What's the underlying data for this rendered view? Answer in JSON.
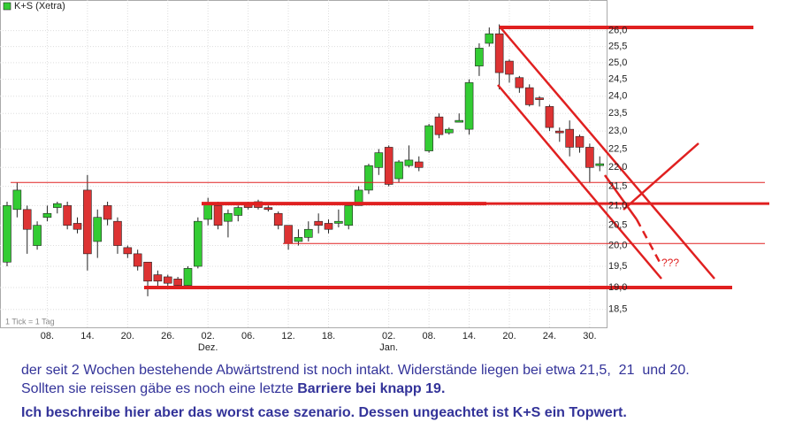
{
  "chart_data": {
    "type": "candlestick",
    "legend": "K+S (Xetra)",
    "note": "1 Tick = 1 Tag",
    "log_scale": true,
    "grid": true,
    "up_color": "#33cc33",
    "down_color": "#dd3333",
    "level_color": "#e02020",
    "categories": [
      null,
      null,
      null,
      null,
      "08.",
      null,
      null,
      null,
      "14.",
      null,
      null,
      null,
      "20.",
      null,
      null,
      null,
      "26.",
      null,
      null,
      null,
      "02.",
      null,
      null,
      null,
      "06.",
      null,
      null,
      null,
      "12.",
      null,
      null,
      null,
      "18.",
      null,
      null,
      null,
      null,
      null,
      "02.",
      null,
      null,
      null,
      "08.",
      null,
      null,
      null,
      "14.",
      null,
      null,
      null,
      "20.",
      null,
      null,
      null,
      "24.",
      null,
      null,
      null,
      "30.",
      null
    ],
    "months": [
      null,
      null,
      null,
      null,
      null,
      null,
      null,
      null,
      null,
      null,
      null,
      null,
      null,
      null,
      null,
      null,
      null,
      null,
      null,
      null,
      "Dez.",
      null,
      null,
      null,
      null,
      null,
      null,
      null,
      null,
      null,
      null,
      null,
      null,
      null,
      null,
      null,
      null,
      null,
      "Jan.",
      null,
      null,
      null,
      null,
      null,
      null,
      null,
      null,
      null,
      null,
      null,
      null,
      null,
      null,
      null,
      null,
      null,
      null,
      null,
      null,
      null
    ],
    "open": [
      19.6,
      20.9,
      20.9,
      20.0,
      20.7,
      20.95,
      21.0,
      20.55,
      21.4,
      20.1,
      21.0,
      20.6,
      19.95,
      19.8,
      19.6,
      19.3,
      19.25,
      19.2,
      19.05,
      19.5,
      20.65,
      21.0,
      20.6,
      20.75,
      21.05,
      21.1,
      20.95,
      20.8,
      20.5,
      20.1,
      20.2,
      20.6,
      20.55,
      20.55,
      20.5,
      21.0,
      21.4,
      22.0,
      22.55,
      21.7,
      22.05,
      22.15,
      22.45,
      23.4,
      22.95,
      23.25,
      23.05,
      24.9,
      25.6,
      25.9,
      25.05,
      24.55,
      24.25,
      23.95,
      23.7,
      23.0,
      23.05,
      22.85,
      22.55,
      22.05
    ],
    "high": [
      21.1,
      21.6,
      21.0,
      20.6,
      21.0,
      21.1,
      21.1,
      20.7,
      21.8,
      20.9,
      21.1,
      20.7,
      20.0,
      19.9,
      19.6,
      19.4,
      19.3,
      19.25,
      19.5,
      20.7,
      21.2,
      21.1,
      20.9,
      21.0,
      21.1,
      21.15,
      21.0,
      20.85,
      20.5,
      20.4,
      20.6,
      20.8,
      20.65,
      20.9,
      21.05,
      21.5,
      22.1,
      22.5,
      22.6,
      22.2,
      22.6,
      22.3,
      23.2,
      23.5,
      23.1,
      23.5,
      24.5,
      25.6,
      26.1,
      26.2,
      25.1,
      24.6,
      24.35,
      24.0,
      23.75,
      23.1,
      23.3,
      22.9,
      22.65,
      22.3
    ],
    "low": [
      19.5,
      20.7,
      19.8,
      19.9,
      20.6,
      20.8,
      20.4,
      20.3,
      19.4,
      19.7,
      20.5,
      19.8,
      19.7,
      19.4,
      18.8,
      19.0,
      19.0,
      19.0,
      19.0,
      19.45,
      20.5,
      20.4,
      20.2,
      20.6,
      20.9,
      20.9,
      20.85,
      20.4,
      19.9,
      20.0,
      20.1,
      20.3,
      20.3,
      20.45,
      20.4,
      21.0,
      21.3,
      21.8,
      21.5,
      21.6,
      22.0,
      21.9,
      22.4,
      22.8,
      22.9,
      23.25,
      22.9,
      24.6,
      25.5,
      24.2,
      24.4,
      24.1,
      23.7,
      23.7,
      23.0,
      22.7,
      22.3,
      22.4,
      21.6,
      21.9
    ],
    "close": [
      21.0,
      21.4,
      20.4,
      20.5,
      20.8,
      21.05,
      20.5,
      20.4,
      19.8,
      20.7,
      20.65,
      20.0,
      19.8,
      19.5,
      19.15,
      19.15,
      19.1,
      19.05,
      19.45,
      20.6,
      21.05,
      20.5,
      20.8,
      20.95,
      20.95,
      20.95,
      20.9,
      20.5,
      20.05,
      20.2,
      20.4,
      20.5,
      20.4,
      20.6,
      21.0,
      21.4,
      22.05,
      22.4,
      21.55,
      22.15,
      22.2,
      22.0,
      23.15,
      22.9,
      23.05,
      23.3,
      24.4,
      25.45,
      25.9,
      24.7,
      24.65,
      24.25,
      23.75,
      23.9,
      23.1,
      22.95,
      22.55,
      22.55,
      22.0,
      22.1
    ],
    "ylim": [
      18.1,
      26.7
    ],
    "yticks": [
      {
        "value": 18.5,
        "label": "18,5"
      },
      {
        "value": 19,
        "label": "19,0"
      },
      {
        "value": 19.5,
        "label": "19,5"
      },
      {
        "value": 20,
        "label": "20,0"
      },
      {
        "value": 20.5,
        "label": "20,5"
      },
      {
        "value": 21,
        "label": "21,0"
      },
      {
        "value": 21.5,
        "label": "21,5"
      },
      {
        "value": 22,
        "label": "22,0"
      },
      {
        "value": 22.5,
        "label": "22,5"
      },
      {
        "value": 23,
        "label": "23,0"
      },
      {
        "value": 23.5,
        "label": "23,5"
      },
      {
        "value": 24,
        "label": "24,0"
      },
      {
        "value": 24.5,
        "label": "24,5"
      },
      {
        "value": 25,
        "label": "25,0"
      },
      {
        "value": 25.5,
        "label": "25,5"
      },
      {
        "value": 26,
        "label": "26,0"
      }
    ],
    "levels": [
      21.6,
      21.05,
      20.05,
      26.1,
      19.0
    ],
    "annotation": "???"
  },
  "caption": [
    [
      {
        "text": "der seit 2 Wochen bestehende Abwärtstrend ist noch intakt. Widerstände liegen bei etwa 21,5,  21  und 20.",
        "bold": false
      }
    ],
    [
      {
        "text": "Sollten sie reissen gäbe es noch eine letzte ",
        "bold": false
      },
      {
        "text": "Barriere bei knapp 19.",
        "bold": true
      }
    ],
    [
      {
        "text": "Ich beschreibe hier aber das worst case szenario. Dessen ungeachtet ist K+S ein Topwert.",
        "bold": true
      }
    ]
  ]
}
